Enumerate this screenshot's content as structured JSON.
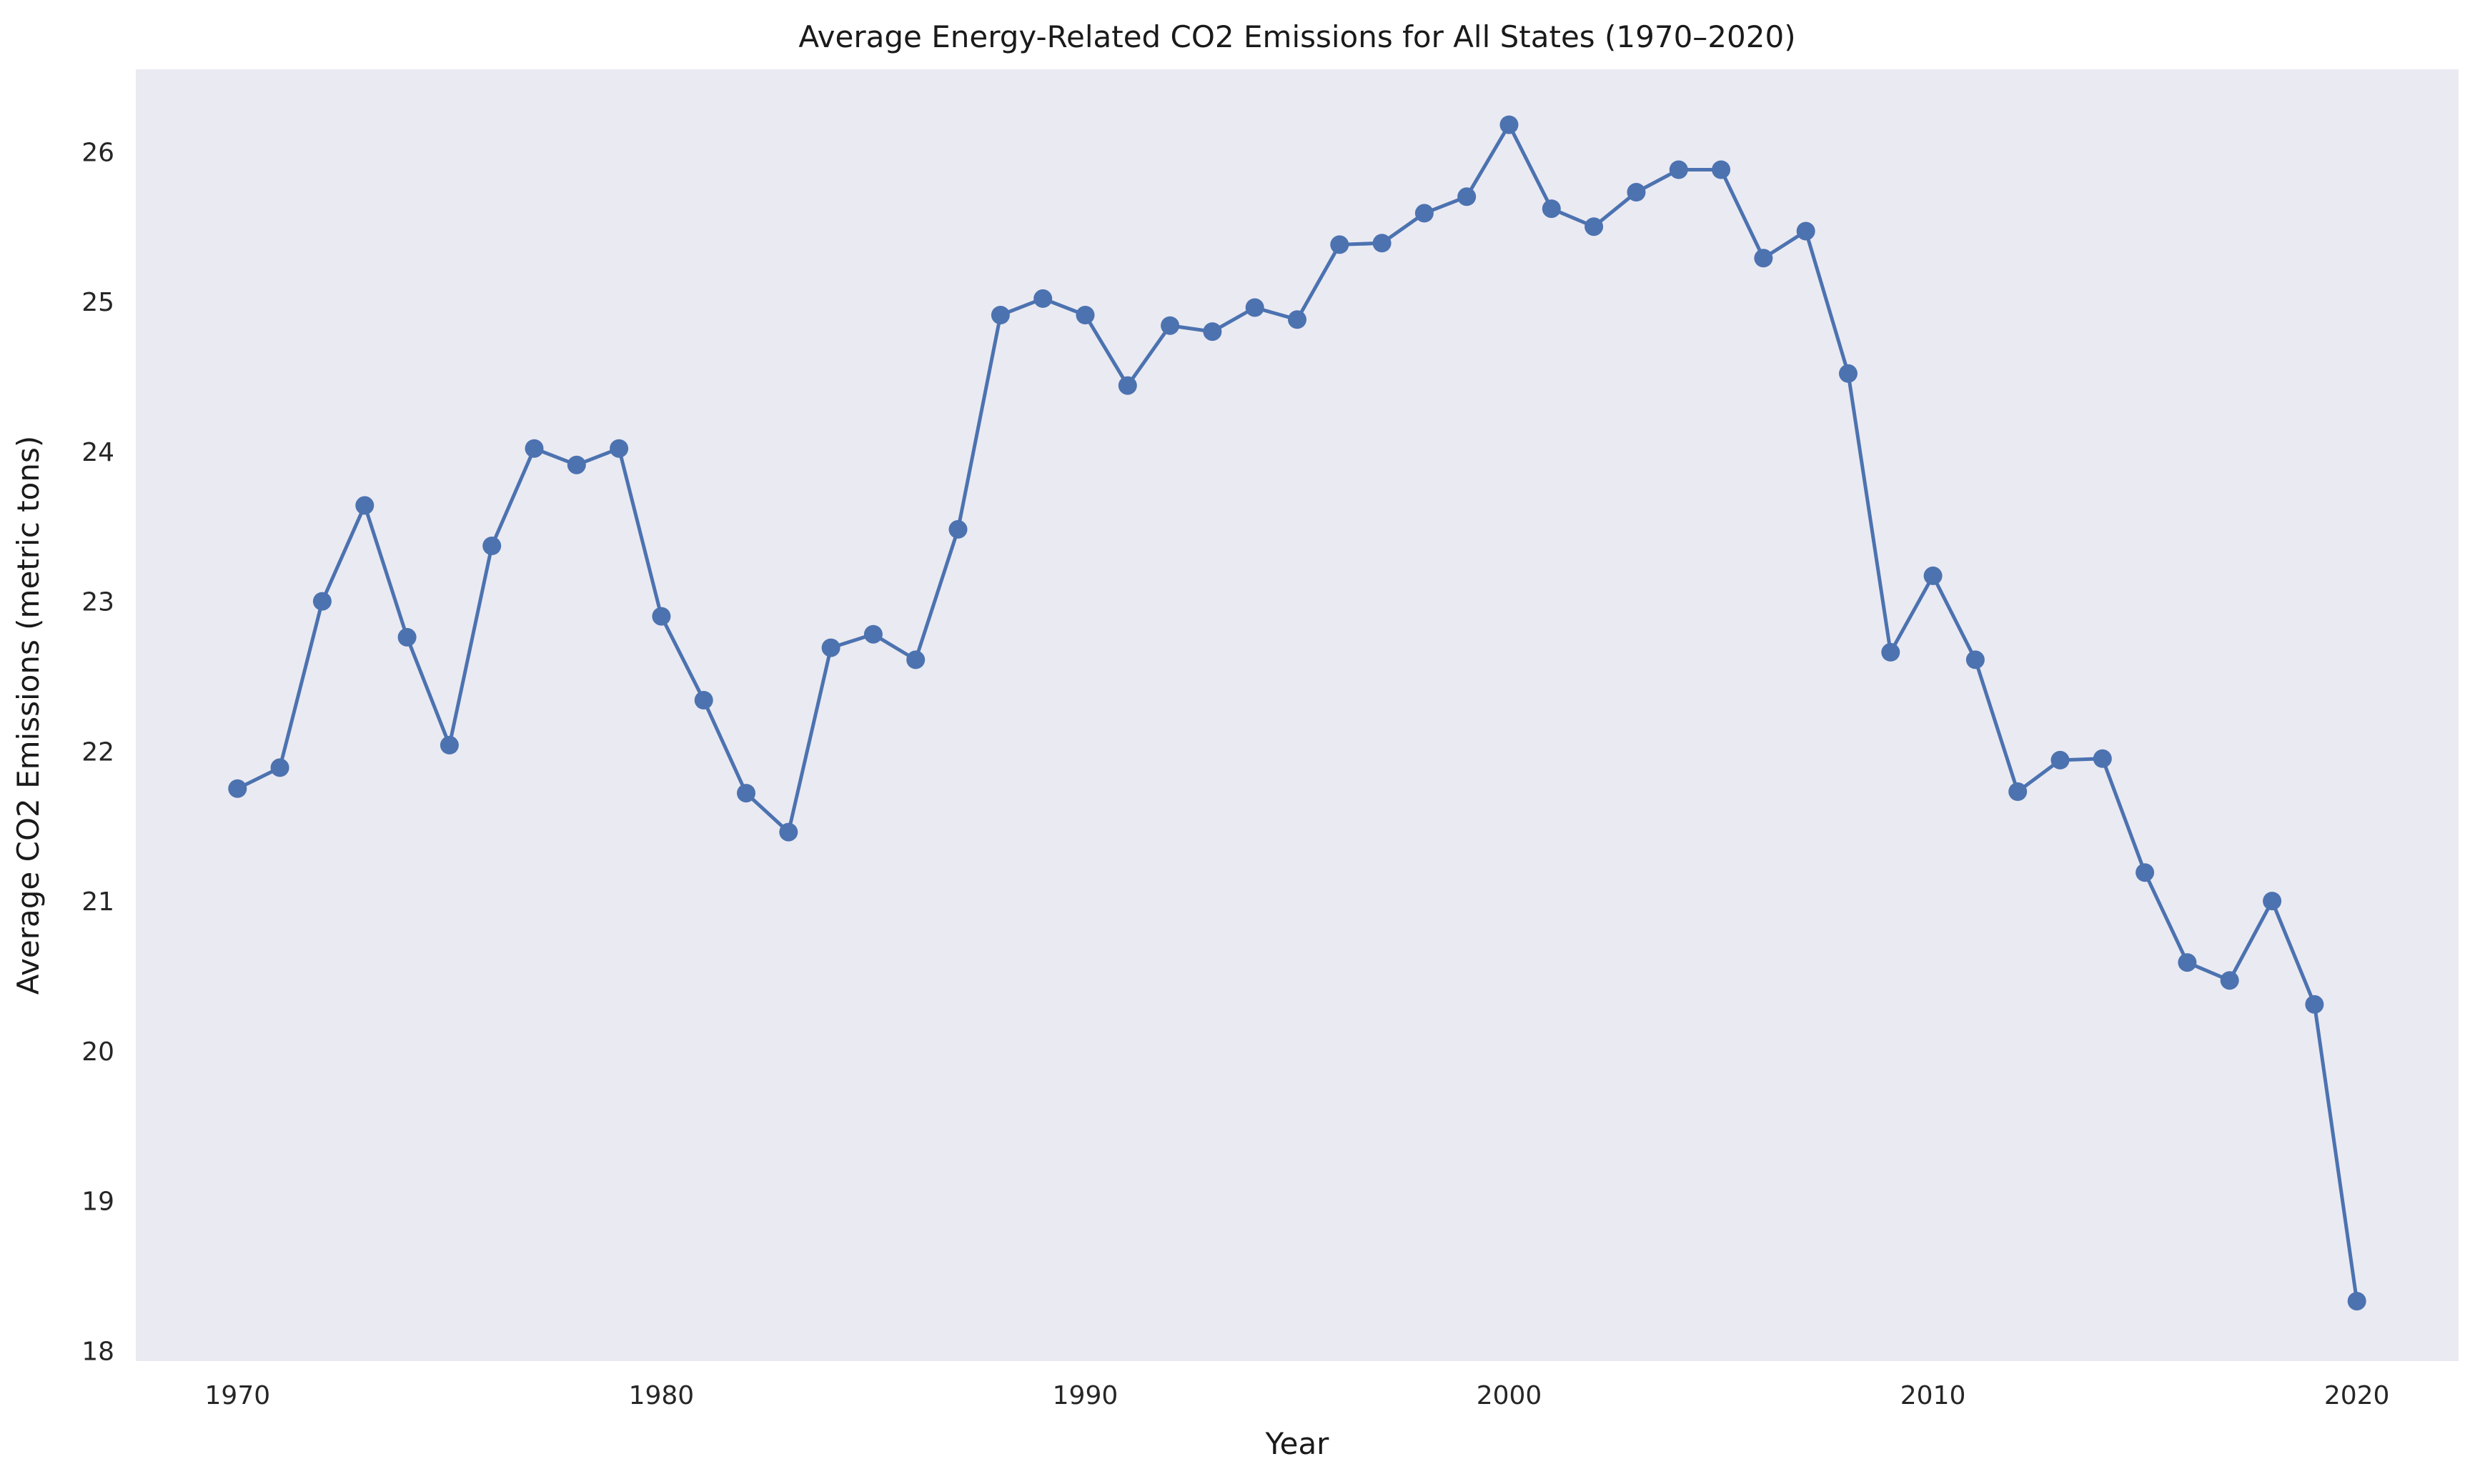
{
  "chart_data": {
    "type": "line",
    "title": "Average Energy-Related CO2 Emissions for All States (1970–2020)",
    "xlabel": "Year",
    "ylabel": "Average CO2 Emissions (metric tons)",
    "xlim": [
      1967.6,
      2022.4
    ],
    "ylim": [
      17.93,
      26.55
    ],
    "x_ticks": [
      1970,
      1980,
      1990,
      2000,
      2010,
      2020
    ],
    "y_ticks": [
      18,
      19,
      20,
      21,
      22,
      23,
      24,
      25,
      26
    ],
    "grid": false,
    "background": "#eaeaf2",
    "series": [
      {
        "color": "#4c72b0",
        "marker": "circle",
        "x": [
          1970,
          1971,
          1972,
          1973,
          1974,
          1975,
          1976,
          1977,
          1978,
          1979,
          1980,
          1981,
          1982,
          1983,
          1984,
          1985,
          1986,
          1987,
          1988,
          1989,
          1990,
          1991,
          1992,
          1993,
          1994,
          1995,
          1996,
          1997,
          1998,
          1999,
          2000,
          2001,
          2002,
          2003,
          2004,
          2005,
          2006,
          2007,
          2008,
          2009,
          2010,
          2011,
          2012,
          2013,
          2014,
          2015,
          2016,
          2017,
          2018,
          2019,
          2020
        ],
        "values": [
          21.75,
          21.89,
          23.0,
          23.64,
          22.76,
          22.04,
          23.37,
          24.02,
          23.91,
          24.02,
          22.9,
          22.34,
          21.72,
          21.46,
          22.69,
          22.78,
          22.61,
          23.48,
          24.91,
          25.02,
          24.91,
          24.44,
          24.84,
          24.8,
          24.96,
          24.88,
          25.38,
          25.39,
          25.59,
          25.7,
          26.18,
          25.62,
          25.5,
          25.73,
          25.88,
          25.88,
          25.29,
          25.47,
          24.52,
          22.66,
          23.17,
          22.61,
          21.73,
          21.94,
          21.95,
          21.19,
          20.59,
          20.47,
          21.0,
          20.31,
          18.33
        ]
      }
    ]
  }
}
